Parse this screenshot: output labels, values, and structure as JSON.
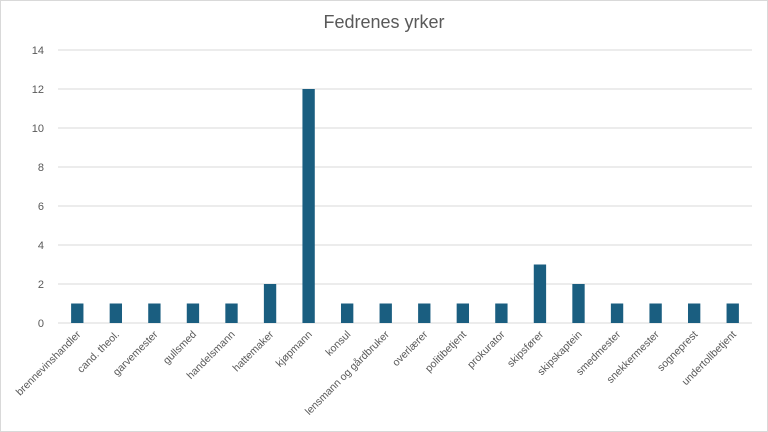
{
  "chart_data": {
    "type": "bar",
    "title": "Fedrenes yrker",
    "xlabel": "",
    "ylabel": "",
    "ylim": [
      0,
      14
    ],
    "yticks": [
      "0",
      "2",
      "4",
      "6",
      "8",
      "10",
      "12",
      "14"
    ],
    "grid": true,
    "legend": "none",
    "bar_color": "#1a5e80",
    "categories": [
      "brennevinshandler",
      "cand. theol.",
      "garvemester",
      "gullsmed",
      "handelsmann",
      "hattemaker",
      "kjøpmann",
      "konsul",
      "lensmann og gårdbruker",
      "overlærer",
      "politibetjent",
      "prokurator",
      "skipsfører",
      "skipskaptein",
      "smedmester",
      "snekkermester",
      "sogneprest",
      "undertollbetjent"
    ],
    "values": [
      1,
      1,
      1,
      1,
      1,
      2,
      12,
      1,
      1,
      1,
      1,
      1,
      3,
      2,
      1,
      1,
      1,
      1
    ]
  }
}
